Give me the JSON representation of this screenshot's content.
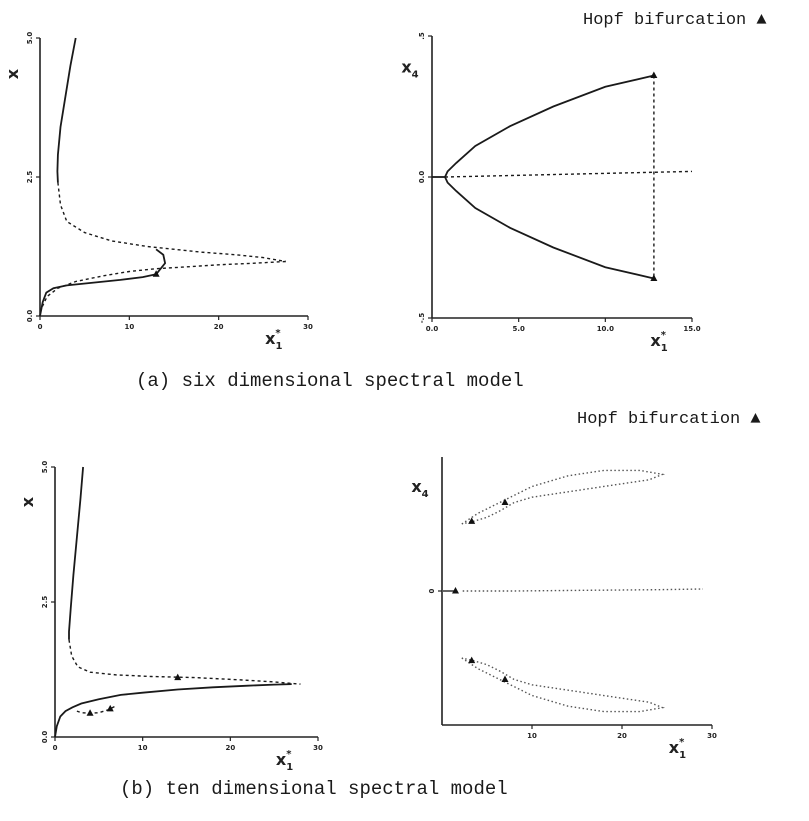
{
  "captions": {
    "a": "(a) six dimensional spectral model",
    "b": "(b) ten dimensional spectral model"
  },
  "legend": {
    "hopf_label": "Hopf bifurcation ▲"
  },
  "axis_text": {
    "x_base": "x",
    "x_sub": "1",
    "x_sup": "*",
    "y1_base": "x",
    "y4_base": "x",
    "y4_sub": "4"
  },
  "chart_data": [
    {
      "panel": "a-left",
      "type": "line",
      "xticks": [
        "0",
        "10",
        "20",
        "30"
      ],
      "yticks": [
        "0.0",
        "2.5",
        "5.0"
      ],
      "xlim": [
        0,
        30
      ],
      "ylim": [
        0,
        5
      ],
      "series": [
        {
          "style": "solid",
          "x": [
            4,
            3.4,
            2.8,
            2.3,
            2.0,
            1.95,
            2.0
          ],
          "y": [
            5.0,
            4.5,
            3.9,
            3.4,
            2.9,
            2.6,
            2.4
          ]
        },
        {
          "style": "dashed",
          "x": [
            2.0,
            2.3,
            3.0,
            5,
            8,
            12,
            18,
            22,
            25,
            27.5
          ],
          "y": [
            2.4,
            2.0,
            1.7,
            1.5,
            1.35,
            1.25,
            1.15,
            1.1,
            1.05,
            0.98
          ]
        },
        {
          "style": "dashed",
          "x": [
            27.5,
            24,
            20,
            16,
            13,
            10,
            7,
            4,
            2,
            0.8,
            0.2
          ],
          "y": [
            0.98,
            0.95,
            0.92,
            0.88,
            0.85,
            0.8,
            0.72,
            0.62,
            0.5,
            0.35,
            0.15
          ]
        },
        {
          "style": "solid",
          "x": [
            0,
            0.3,
            0.7,
            1.5,
            3,
            6,
            9,
            11.5,
            13
          ],
          "y": [
            0,
            0.25,
            0.42,
            0.5,
            0.55,
            0.6,
            0.65,
            0.7,
            0.75
          ]
        },
        {
          "style": "solid",
          "x": [
            13,
            14,
            13.8,
            13
          ],
          "y": [
            0.75,
            0.95,
            1.1,
            1.2
          ]
        }
      ],
      "hopf_points": [
        {
          "x": 13,
          "y": 0.75
        }
      ]
    },
    {
      "panel": "a-right",
      "type": "line",
      "xticks": [
        "0.0",
        "5.0",
        "10.0",
        "15.0"
      ],
      "yticks": [
        "-.5",
        "0.0",
        ".5"
      ],
      "xlim": [
        0,
        15
      ],
      "ylim": [
        -0.5,
        0.5
      ],
      "series": [
        {
          "style": "solid",
          "x": [
            12.8,
            10,
            7,
            4.5,
            2.5,
            1.4,
            0.9,
            0.75
          ],
          "y": [
            0.36,
            0.32,
            0.25,
            0.18,
            0.11,
            0.05,
            0.02,
            0.0
          ]
        },
        {
          "style": "solid",
          "x": [
            0.75,
            0.9,
            1.4,
            2.5,
            4.5,
            7,
            10,
            12.8
          ],
          "y": [
            0.0,
            -0.02,
            -0.05,
            -0.11,
            -0.18,
            -0.25,
            -0.32,
            -0.36
          ]
        },
        {
          "style": "solid",
          "x": [
            0,
            0.75
          ],
          "y": [
            0,
            0
          ]
        },
        {
          "style": "dashed",
          "x": [
            0.75,
            15
          ],
          "y": [
            0,
            0.02
          ]
        },
        {
          "style": "dashed",
          "x": [
            12.8,
            12.8
          ],
          "y": [
            0.36,
            -0.36
          ]
        }
      ],
      "hopf_points": [
        {
          "x": 12.8,
          "y": 0.36
        },
        {
          "x": 12.8,
          "y": -0.36
        }
      ]
    },
    {
      "panel": "b-left",
      "type": "line",
      "xticks": [
        "0",
        "10",
        "20",
        "30"
      ],
      "yticks": [
        "0.0",
        "2.5",
        "5.0"
      ],
      "xlim": [
        0,
        30
      ],
      "ylim": [
        0,
        5
      ],
      "series": [
        {
          "style": "solid",
          "x": [
            3.2,
            2.9,
            2.5,
            2.1,
            1.8,
            1.6,
            1.6
          ],
          "y": [
            5.0,
            4.4,
            3.7,
            3.0,
            2.4,
            1.95,
            1.8
          ]
        },
        {
          "style": "dashed",
          "x": [
            1.6,
            1.9,
            2.6,
            4,
            7,
            11,
            16,
            21,
            25,
            28
          ],
          "y": [
            1.8,
            1.5,
            1.3,
            1.2,
            1.15,
            1.12,
            1.1,
            1.06,
            1.02,
            0.98
          ]
        },
        {
          "style": "solid",
          "x": [
            0,
            0.2,
            0.6,
            1.2,
            2,
            3,
            5,
            7.5,
            10,
            14,
            18,
            22,
            25,
            27
          ],
          "y": [
            0,
            0.2,
            0.38,
            0.48,
            0.55,
            0.62,
            0.7,
            0.78,
            0.82,
            0.88,
            0.92,
            0.95,
            0.97,
            0.98
          ]
        },
        {
          "style": "dashed",
          "x": [
            2.5,
            3,
            4,
            5,
            6,
            7
          ],
          "y": [
            0.48,
            0.45,
            0.44,
            0.45,
            0.5,
            0.58
          ]
        }
      ],
      "hopf_points": [
        {
          "x": 14,
          "y": 1.1
        },
        {
          "x": 4,
          "y": 0.44
        },
        {
          "x": 6.3,
          "y": 0.52
        }
      ]
    },
    {
      "panel": "b-right",
      "type": "line",
      "xticks": [
        "10",
        "20",
        "30"
      ],
      "yticks": [
        "0"
      ],
      "xlim": [
        0,
        30
      ],
      "ylim": [
        -1,
        1
      ],
      "series": [
        {
          "style": "dotted",
          "x": [
            2.2,
            4,
            7,
            10,
            14,
            18,
            22,
            24.5,
            23,
            19,
            15,
            12,
            10,
            8,
            6.5,
            5,
            3.5,
            2.2
          ],
          "y": [
            0.5,
            0.58,
            0.68,
            0.78,
            0.86,
            0.9,
            0.9,
            0.87,
            0.83,
            0.79,
            0.75,
            0.72,
            0.7,
            0.66,
            0.6,
            0.55,
            0.52,
            0.5
          ]
        },
        {
          "style": "dotted",
          "x": [
            2.2,
            4,
            7,
            10,
            14,
            18,
            22,
            24.5,
            23,
            19,
            15,
            12,
            10,
            8,
            6.5,
            5,
            3.5,
            2.2
          ],
          "y": [
            -0.5,
            -0.58,
            -0.68,
            -0.78,
            -0.86,
            -0.9,
            -0.9,
            -0.87,
            -0.83,
            -0.79,
            -0.75,
            -0.72,
            -0.7,
            -0.66,
            -0.6,
            -0.55,
            -0.52,
            -0.5
          ]
        },
        {
          "style": "dotted",
          "x": [
            2.3,
            8,
            16,
            24,
            29
          ],
          "y": [
            0,
            0,
            0.005,
            0.01,
            0.015
          ]
        },
        {
          "style": "solid",
          "x": [
            0,
            1.3
          ],
          "y": [
            0,
            0
          ]
        }
      ],
      "hopf_points": [
        {
          "x": 7,
          "y": 0.66
        },
        {
          "x": 3.3,
          "y": 0.52
        },
        {
          "x": 7,
          "y": -0.66
        },
        {
          "x": 3.3,
          "y": -0.52
        },
        {
          "x": 1.5,
          "y": 0.0
        }
      ]
    }
  ]
}
